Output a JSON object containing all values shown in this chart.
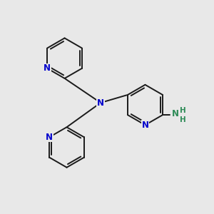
{
  "bg_color": "#e8e8e8",
  "bond_color": "#1a1a1a",
  "N_color": "#0000cc",
  "NH_color": "#2e8b57",
  "lw": 1.4,
  "fs": 8.5,
  "figsize": [
    3.0,
    3.0
  ],
  "dpi": 100,
  "xlim": [
    0,
    10
  ],
  "ylim": [
    0,
    10
  ],
  "ring_r": 0.95
}
